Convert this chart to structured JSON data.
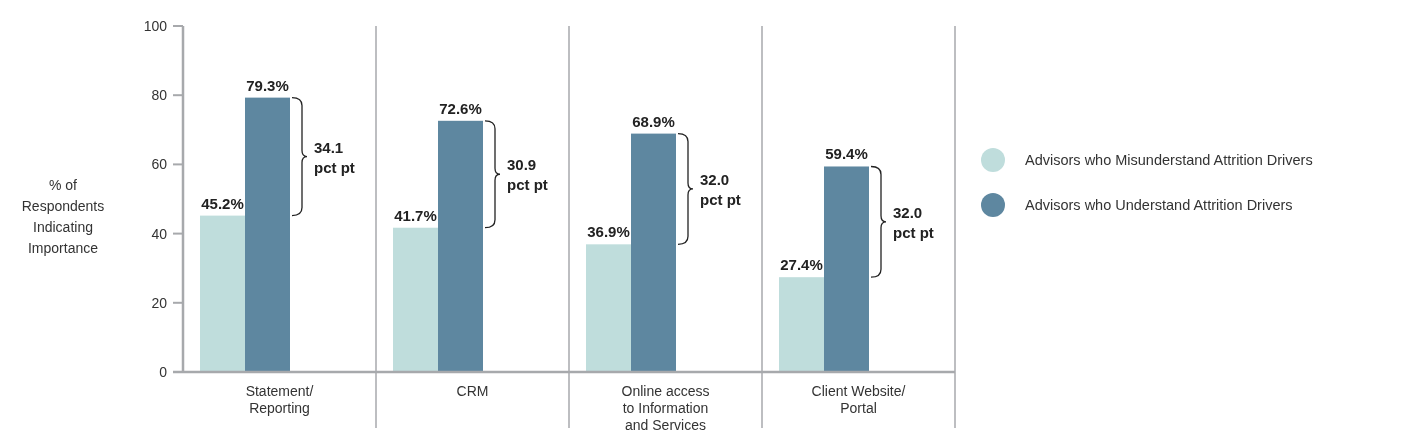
{
  "chart_data": {
    "type": "bar",
    "ylabel": "% of Respondents Indicating Importance",
    "categories": [
      "Statement/ Reporting",
      "CRM",
      "Online access to Information and Services",
      "Client Website/ Portal"
    ],
    "series": [
      {
        "name": "Advisors who Misunderstand Attrition Drivers",
        "color": "#bfdddc",
        "values": [
          45.2,
          41.7,
          36.9,
          27.4
        ],
        "value_labels": [
          "45.2%",
          "41.7%",
          "36.9%",
          "27.4%"
        ]
      },
      {
        "name": "Advisors who Understand Attrition Drivers",
        "color": "#5e87a0",
        "values": [
          79.3,
          72.6,
          68.9,
          59.4
        ],
        "value_labels": [
          "79.3%",
          "72.6%",
          "68.9%",
          "59.4%"
        ]
      }
    ],
    "ylim": [
      0,
      100
    ],
    "yticks": [
      0,
      20,
      40,
      60,
      80,
      100
    ],
    "legend": "right",
    "annotations": [
      "34.1 pct pt",
      "30.9 pct pt",
      "32.0 pct pt",
      "32.0 pct pt"
    ]
  }
}
